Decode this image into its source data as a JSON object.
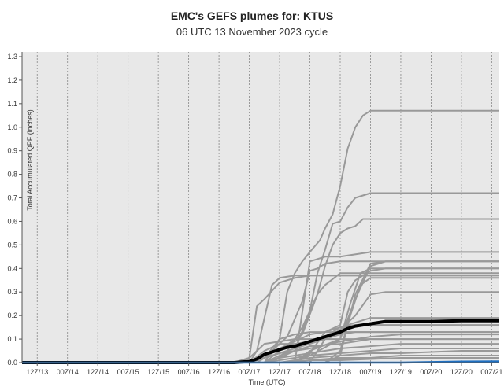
{
  "chart_data": {
    "type": "line",
    "title": "EMC's GEFS plumes for: KTUS",
    "subtitle": "06 UTC 13 November 2023 cycle",
    "xlabel": "Time (UTC)",
    "ylabel": "Total Accumulated QPF (inches)",
    "ylim": [
      0,
      1.32
    ],
    "yticks": [
      0.0,
      0.1,
      0.2,
      0.3,
      0.4,
      0.5,
      0.6,
      0.7,
      0.8,
      0.9,
      1.0,
      1.1,
      1.2,
      1.3
    ],
    "ytick_labels": [
      "0.0",
      "0.1",
      "0.2",
      "0.3",
      "0.4",
      "0.5",
      "0.6",
      "0.7",
      "0.8",
      "0.9",
      "1.0",
      "1.1",
      "1.2",
      "1.3"
    ],
    "xlim": [
      0,
      189
    ],
    "xticks": [
      6,
      18,
      30,
      42,
      54,
      66,
      78,
      90,
      102,
      114,
      126,
      138,
      150,
      162,
      174,
      186
    ],
    "xtick_labels": [
      "12Z/13",
      "00Z/14",
      "12Z/14",
      "00Z/15",
      "12Z/15",
      "00Z/16",
      "12Z/16",
      "00Z/17",
      "12Z/17",
      "00Z/18",
      "12Z/18",
      "00Z/19",
      "12Z/19",
      "00Z/20",
      "12Z/20",
      "00Z/21"
    ],
    "grid": "vertical dotted",
    "colors": {
      "members": "#999999",
      "mean": "#000000",
      "control": "#1f6fc0",
      "background": "#e8e8e8"
    },
    "members": [
      [
        [
          0,
          0
        ],
        [
          84,
          0
        ],
        [
          90,
          0.02
        ],
        [
          93,
          0.24
        ],
        [
          96,
          0.27
        ],
        [
          102,
          0.34
        ],
        [
          108,
          0.36
        ],
        [
          114,
          0.37
        ],
        [
          189,
          0.37
        ]
      ],
      [
        [
          0,
          0
        ],
        [
          90,
          0
        ],
        [
          93,
          0.05
        ],
        [
          99,
          0.33
        ],
        [
          102,
          0.36
        ],
        [
          108,
          0.37
        ],
        [
          189,
          0.37
        ]
      ],
      [
        [
          0,
          0
        ],
        [
          90,
          0
        ],
        [
          96,
          0.02
        ],
        [
          102,
          0.1
        ],
        [
          105,
          0.3
        ],
        [
          108,
          0.38
        ],
        [
          111,
          0.43
        ],
        [
          114,
          0.47
        ],
        [
          118,
          0.52
        ],
        [
          120,
          0.57
        ],
        [
          123,
          0.63
        ],
        [
          126,
          0.75
        ],
        [
          129,
          0.91
        ],
        [
          132,
          1.0
        ],
        [
          135,
          1.05
        ],
        [
          138,
          1.07
        ],
        [
          189,
          1.07
        ]
      ],
      [
        [
          0,
          0
        ],
        [
          96,
          0
        ],
        [
          99,
          0.05
        ],
        [
          105,
          0.11
        ],
        [
          111,
          0.26
        ],
        [
          114,
          0.39
        ],
        [
          117,
          0.4
        ],
        [
          120,
          0.42
        ],
        [
          126,
          0.43
        ],
        [
          189,
          0.43
        ]
      ],
      [
        [
          0,
          0
        ],
        [
          96,
          0
        ],
        [
          102,
          0.02
        ],
        [
          108,
          0.05
        ],
        [
          114,
          0.22
        ],
        [
          117,
          0.38
        ],
        [
          120,
          0.48
        ],
        [
          123,
          0.59
        ],
        [
          126,
          0.6
        ],
        [
          129,
          0.66
        ],
        [
          132,
          0.7
        ],
        [
          138,
          0.72
        ],
        [
          189,
          0.72
        ]
      ],
      [
        [
          0,
          0
        ],
        [
          99,
          0
        ],
        [
          105,
          0.05
        ],
        [
          111,
          0.15
        ],
        [
          114,
          0.22
        ],
        [
          117,
          0.29
        ],
        [
          120,
          0.41
        ],
        [
          123,
          0.5
        ],
        [
          126,
          0.55
        ],
        [
          129,
          0.57
        ],
        [
          132,
          0.58
        ],
        [
          135,
          0.61
        ],
        [
          189,
          0.61
        ]
      ],
      [
        [
          0,
          0
        ],
        [
          96,
          0
        ],
        [
          102,
          0.05
        ],
        [
          108,
          0.1
        ],
        [
          111,
          0.12
        ],
        [
          117,
          0.29
        ],
        [
          120,
          0.33
        ],
        [
          126,
          0.38
        ],
        [
          132,
          0.38
        ],
        [
          189,
          0.38
        ]
      ],
      [
        [
          0,
          0
        ],
        [
          108,
          0
        ],
        [
          114,
          0.04
        ],
        [
          120,
          0.13
        ],
        [
          126,
          0.16
        ],
        [
          129,
          0.3
        ],
        [
          132,
          0.35
        ],
        [
          138,
          0.39
        ],
        [
          144,
          0.4
        ],
        [
          189,
          0.4
        ]
      ],
      [
        [
          0,
          0
        ],
        [
          108,
          0
        ],
        [
          114,
          0.05
        ],
        [
          126,
          0.1
        ],
        [
          130,
          0.25
        ],
        [
          134,
          0.38
        ],
        [
          138,
          0.4
        ],
        [
          189,
          0.4
        ]
      ],
      [
        [
          0,
          0
        ],
        [
          108,
          0
        ],
        [
          114,
          0.03
        ],
        [
          126,
          0.1
        ],
        [
          132,
          0.27
        ],
        [
          138,
          0.41
        ],
        [
          144,
          0.43
        ],
        [
          189,
          0.43
        ]
      ],
      [
        [
          0,
          0
        ],
        [
          108,
          0
        ],
        [
          114,
          0.43
        ],
        [
          120,
          0.45
        ],
        [
          126,
          0.45
        ],
        [
          138,
          0.47
        ],
        [
          189,
          0.47
        ]
      ],
      [
        [
          0,
          0
        ],
        [
          120,
          0
        ],
        [
          126,
          0.03
        ],
        [
          132,
          0.29
        ],
        [
          138,
          0.42
        ],
        [
          144,
          0.43
        ],
        [
          189,
          0.43
        ]
      ],
      [
        [
          0,
          0
        ],
        [
          120,
          0
        ],
        [
          126,
          0.05
        ],
        [
          130,
          0.2
        ],
        [
          134,
          0.33
        ],
        [
          138,
          0.36
        ],
        [
          189,
          0.36
        ]
      ],
      [
        [
          0,
          0
        ],
        [
          114,
          0
        ],
        [
          120,
          0.1
        ],
        [
          126,
          0.14
        ],
        [
          132,
          0.2
        ],
        [
          138,
          0.29
        ],
        [
          144,
          0.3
        ],
        [
          189,
          0.3
        ]
      ],
      [
        [
          0,
          0
        ],
        [
          90,
          0
        ],
        [
          96,
          0.05
        ],
        [
          102,
          0.08
        ],
        [
          108,
          0.08
        ],
        [
          114,
          0.09
        ],
        [
          120,
          0.11
        ],
        [
          126,
          0.15
        ],
        [
          132,
          0.17
        ],
        [
          138,
          0.19
        ],
        [
          189,
          0.19
        ]
      ],
      [
        [
          0,
          0
        ],
        [
          90,
          0
        ],
        [
          96,
          0.03
        ],
        [
          102,
          0.06
        ],
        [
          108,
          0.09
        ],
        [
          114,
          0.12
        ],
        [
          120,
          0.13
        ],
        [
          126,
          0.15
        ],
        [
          132,
          0.16
        ],
        [
          189,
          0.16
        ]
      ],
      [
        [
          0,
          0
        ],
        [
          90,
          0
        ],
        [
          96,
          0.02
        ],
        [
          102,
          0.04
        ],
        [
          108,
          0.06
        ],
        [
          114,
          0.08
        ],
        [
          120,
          0.1
        ],
        [
          126,
          0.12
        ],
        [
          132,
          0.13
        ],
        [
          189,
          0.13
        ]
      ],
      [
        [
          0,
          0
        ],
        [
          90,
          0
        ],
        [
          96,
          0.02
        ],
        [
          102,
          0.04
        ],
        [
          108,
          0.05
        ],
        [
          114,
          0.06
        ],
        [
          126,
          0.09
        ],
        [
          138,
          0.11
        ],
        [
          150,
          0.12
        ],
        [
          189,
          0.12
        ]
      ],
      [
        [
          0,
          0
        ],
        [
          96,
          0
        ],
        [
          102,
          0.03
        ],
        [
          108,
          0.05
        ],
        [
          114,
          0.07
        ],
        [
          126,
          0.08
        ],
        [
          138,
          0.1
        ],
        [
          150,
          0.1
        ],
        [
          189,
          0.1
        ]
      ],
      [
        [
          0,
          0
        ],
        [
          96,
          0
        ],
        [
          102,
          0.02
        ],
        [
          108,
          0.03
        ],
        [
          114,
          0.04
        ],
        [
          126,
          0.06
        ],
        [
          138,
          0.07
        ],
        [
          150,
          0.08
        ],
        [
          189,
          0.08
        ]
      ],
      [
        [
          0,
          0
        ],
        [
          96,
          0
        ],
        [
          102,
          0.01
        ],
        [
          108,
          0.02
        ],
        [
          114,
          0.03
        ],
        [
          126,
          0.04
        ],
        [
          138,
          0.05
        ],
        [
          150,
          0.06
        ],
        [
          189,
          0.06
        ]
      ],
      [
        [
          0,
          0
        ],
        [
          102,
          0
        ],
        [
          108,
          0.01
        ],
        [
          114,
          0.02
        ],
        [
          126,
          0.03
        ],
        [
          138,
          0.04
        ],
        [
          150,
          0.04
        ],
        [
          174,
          0.05
        ],
        [
          189,
          0.05
        ]
      ],
      [
        [
          0,
          0
        ],
        [
          102,
          0
        ],
        [
          114,
          0.01
        ],
        [
          126,
          0.02
        ],
        [
          138,
          0.02
        ],
        [
          150,
          0.03
        ],
        [
          189,
          0.03
        ]
      ],
      [
        [
          0,
          0
        ],
        [
          108,
          0
        ],
        [
          114,
          0.01
        ],
        [
          126,
          0.01
        ],
        [
          150,
          0.02
        ],
        [
          189,
          0.02
        ]
      ],
      [
        [
          0,
          0
        ],
        [
          84,
          0
        ],
        [
          90,
          0.02
        ],
        [
          96,
          0.08
        ],
        [
          102,
          0.09
        ],
        [
          108,
          0.1
        ],
        [
          189,
          0.1
        ]
      ],
      [
        [
          0,
          0
        ],
        [
          93,
          0
        ],
        [
          99,
          0.04
        ],
        [
          102,
          0.1
        ],
        [
          108,
          0.12
        ],
        [
          114,
          0.13
        ],
        [
          189,
          0.13
        ]
      ]
    ],
    "mean": [
      [
        0,
        0
      ],
      [
        84,
        0
      ],
      [
        90,
        0.005
      ],
      [
        93,
        0.015
      ],
      [
        96,
        0.035
      ],
      [
        99,
        0.045
      ],
      [
        102,
        0.055
      ],
      [
        105,
        0.065
      ],
      [
        108,
        0.07
      ],
      [
        111,
        0.08
      ],
      [
        114,
        0.09
      ],
      [
        117,
        0.1
      ],
      [
        120,
        0.11
      ],
      [
        123,
        0.12
      ],
      [
        126,
        0.13
      ],
      [
        129,
        0.145
      ],
      [
        132,
        0.155
      ],
      [
        138,
        0.165
      ],
      [
        144,
        0.175
      ],
      [
        150,
        0.175
      ],
      [
        162,
        0.175
      ],
      [
        174,
        0.178
      ],
      [
        189,
        0.178
      ]
    ],
    "control": [
      [
        0,
        0
      ],
      [
        150,
        0
      ],
      [
        162,
        0.002
      ],
      [
        174,
        0.004
      ],
      [
        189,
        0.005
      ]
    ]
  }
}
